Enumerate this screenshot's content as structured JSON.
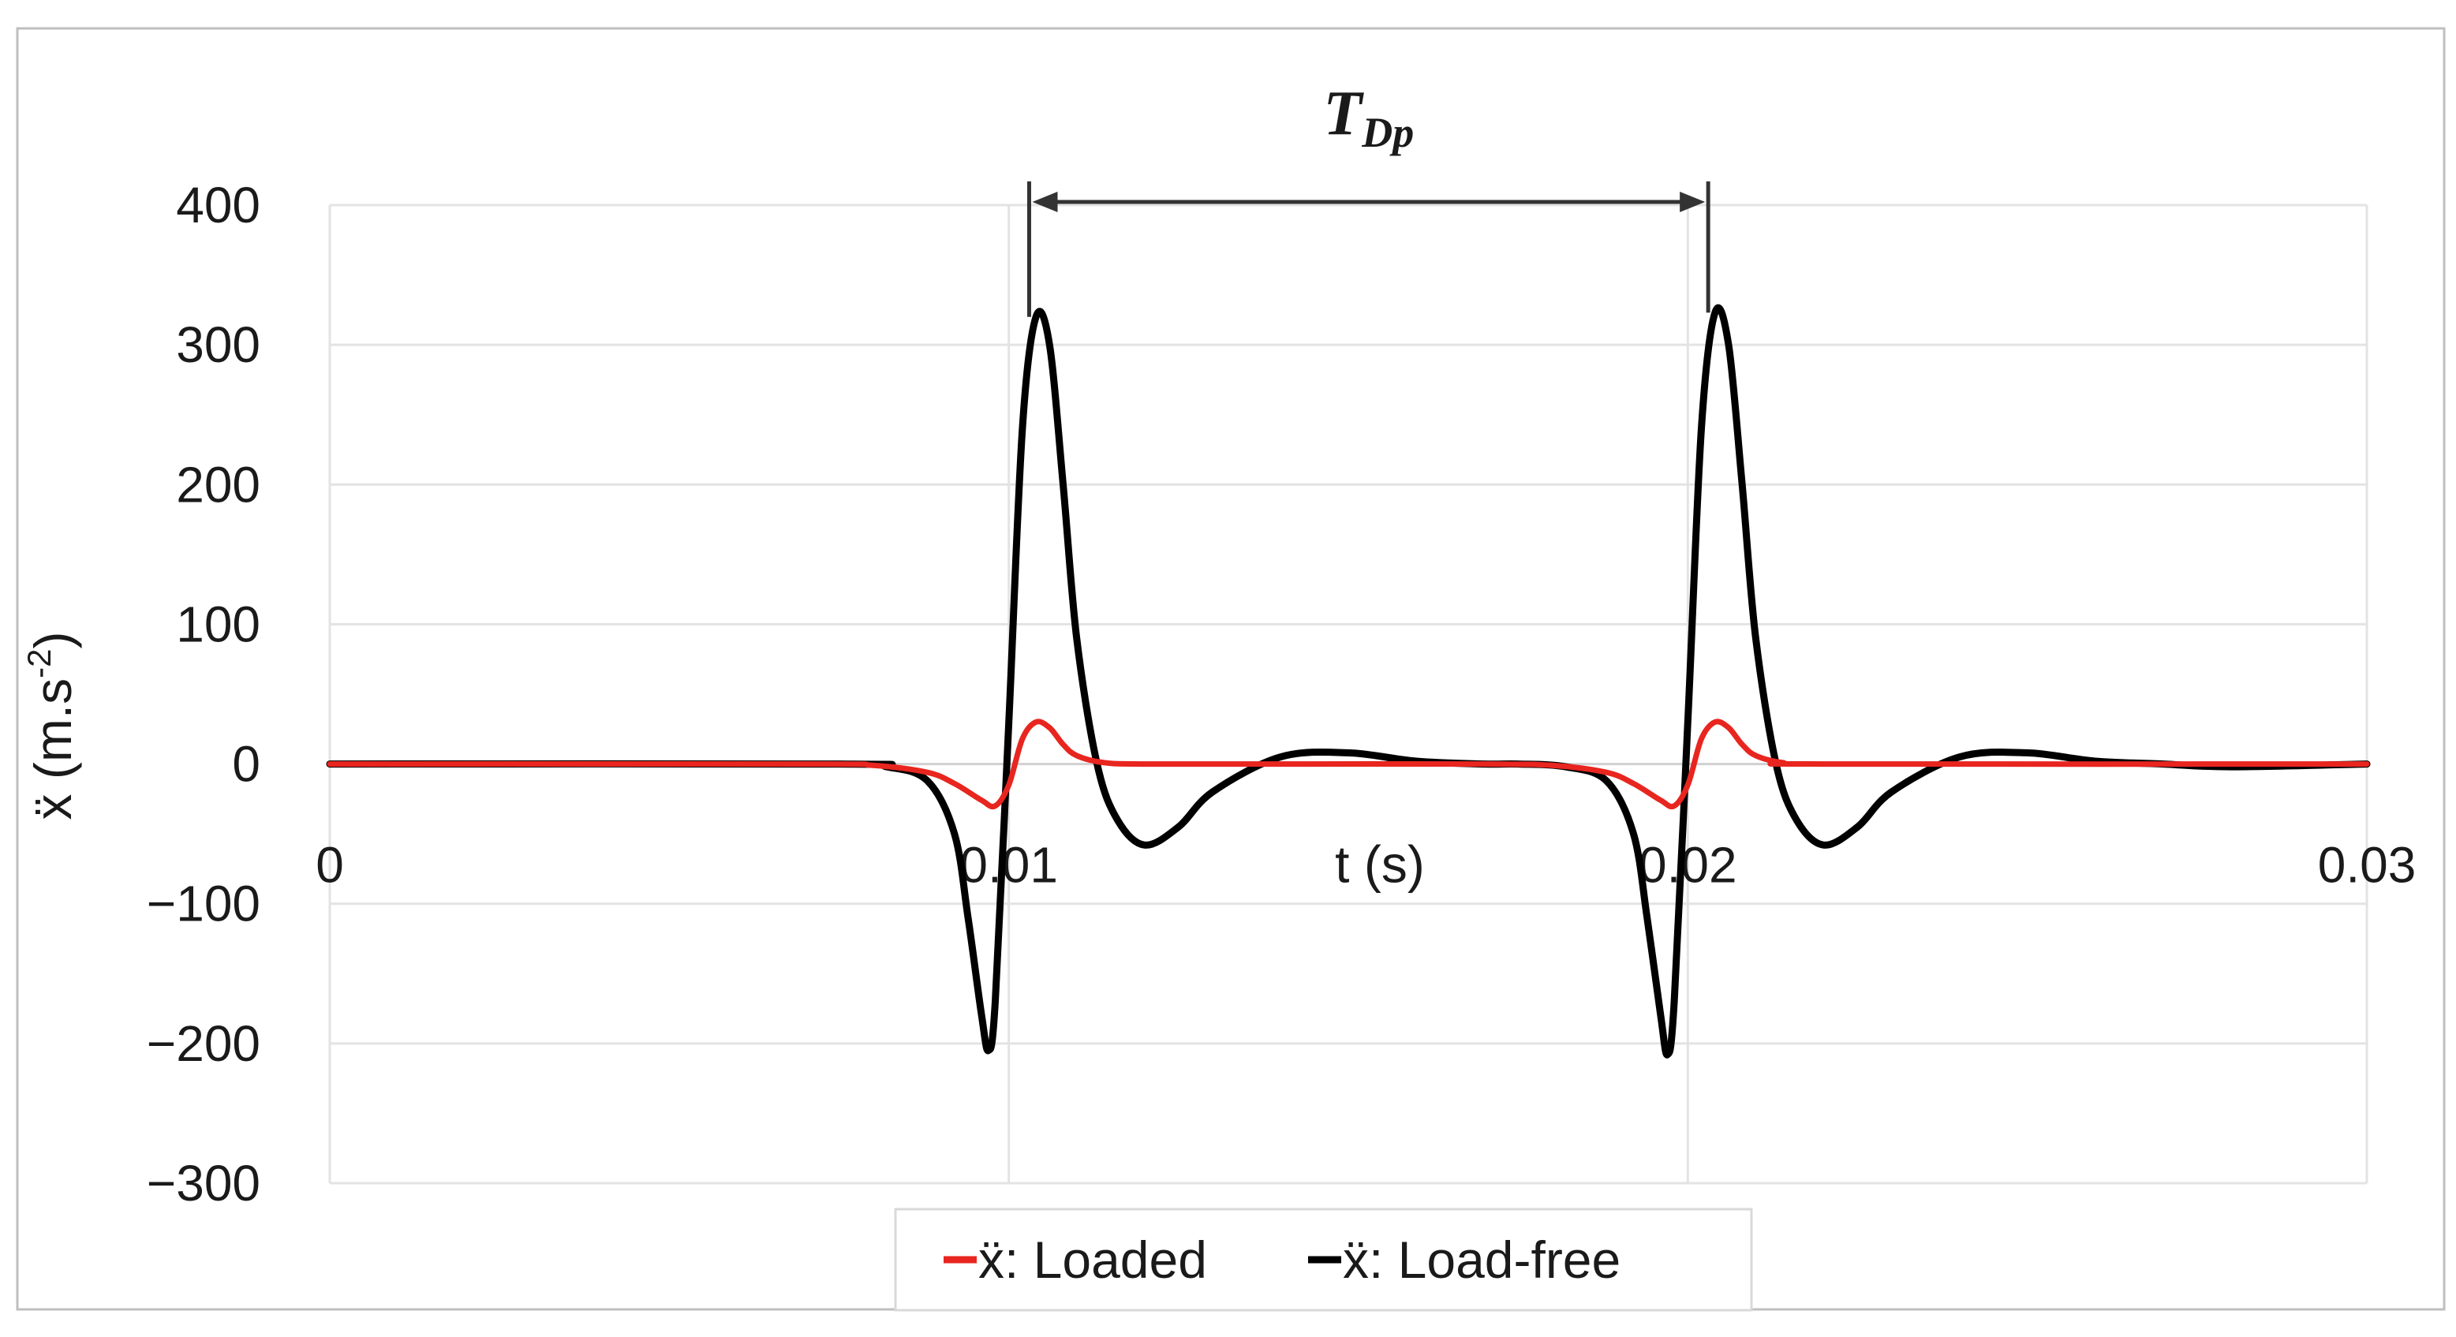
{
  "chart_data": {
    "type": "line",
    "title": "",
    "xlabel": "t (s)",
    "ylabel": "ẍ (m.s",
    "ylabel_sup": "-2",
    "ylabel_close": ")",
    "xlim": [
      0,
      0.03
    ],
    "ylim": [
      -300,
      400
    ],
    "x_ticks": [
      0,
      0.01,
      0.02,
      0.03
    ],
    "x_tick_labels": [
      "0",
      "0.01",
      "0.02",
      "0.03"
    ],
    "y_ticks": [
      -300,
      -200,
      -100,
      0,
      100,
      200,
      300,
      400
    ],
    "y_tick_labels": [
      "−300",
      "−200",
      "−100",
      "0",
      "100",
      "200",
      "300",
      "400"
    ],
    "grid": true,
    "legend_position": "bottom-center",
    "annotation": {
      "label_main": "T",
      "label_sub": "Dp",
      "x_start": 0.0103,
      "x_end": 0.0203,
      "y": 400
    },
    "series": [
      {
        "name": "ẍ: Loaded",
        "color": "#e8251f",
        "x": [
          0,
          0.007,
          0.008,
          0.0088,
          0.0092,
          0.0096,
          0.0098,
          0.01,
          0.0102,
          0.0104,
          0.0106,
          0.0108,
          0.011,
          0.0114,
          0.012,
          0.014,
          0.017,
          0.018,
          0.0188,
          0.0192,
          0.0196,
          0.0198,
          0.02,
          0.0202,
          0.0204,
          0.0206,
          0.0208,
          0.021,
          0.0214,
          0.022,
          0.03
        ],
        "y": [
          0,
          0,
          -1,
          -6,
          -14,
          -26,
          -30,
          -15,
          18,
          30,
          26,
          14,
          6,
          1,
          0,
          0,
          0,
          -1,
          -6,
          -14,
          -26,
          -30,
          -15,
          18,
          30,
          26,
          14,
          6,
          1,
          0,
          0
        ]
      },
      {
        "name": "ẍ: Load-free",
        "color": "#000000",
        "x": [
          0,
          0.0075,
          0.0082,
          0.0088,
          0.0092,
          0.0094,
          0.0096,
          0.0097,
          0.0098,
          0.01,
          0.0102,
          0.0104,
          0.0106,
          0.0108,
          0.011,
          0.0113,
          0.0116,
          0.012,
          0.0125,
          0.013,
          0.014,
          0.015,
          0.016,
          0.017,
          0.0175,
          0.0182,
          0.0188,
          0.0192,
          0.0194,
          0.0196,
          0.0197,
          0.0198,
          0.02,
          0.0202,
          0.0204,
          0.0206,
          0.0208,
          0.021,
          0.0213,
          0.0216,
          0.022,
          0.0225,
          0.023,
          0.024,
          0.025,
          0.026,
          0.027,
          0.028,
          0.03
        ],
        "y": [
          0,
          0,
          -2,
          -12,
          -50,
          -110,
          -180,
          -205,
          -170,
          30,
          240,
          320,
          300,
          200,
          90,
          0,
          -40,
          -58,
          -45,
          -20,
          5,
          8,
          2,
          0,
          0,
          -2,
          -12,
          -50,
          -110,
          -180,
          -208,
          -170,
          30,
          240,
          323,
          300,
          200,
          90,
          0,
          -40,
          -58,
          -45,
          -20,
          5,
          8,
          2,
          0,
          -2,
          0
        ]
      }
    ]
  }
}
